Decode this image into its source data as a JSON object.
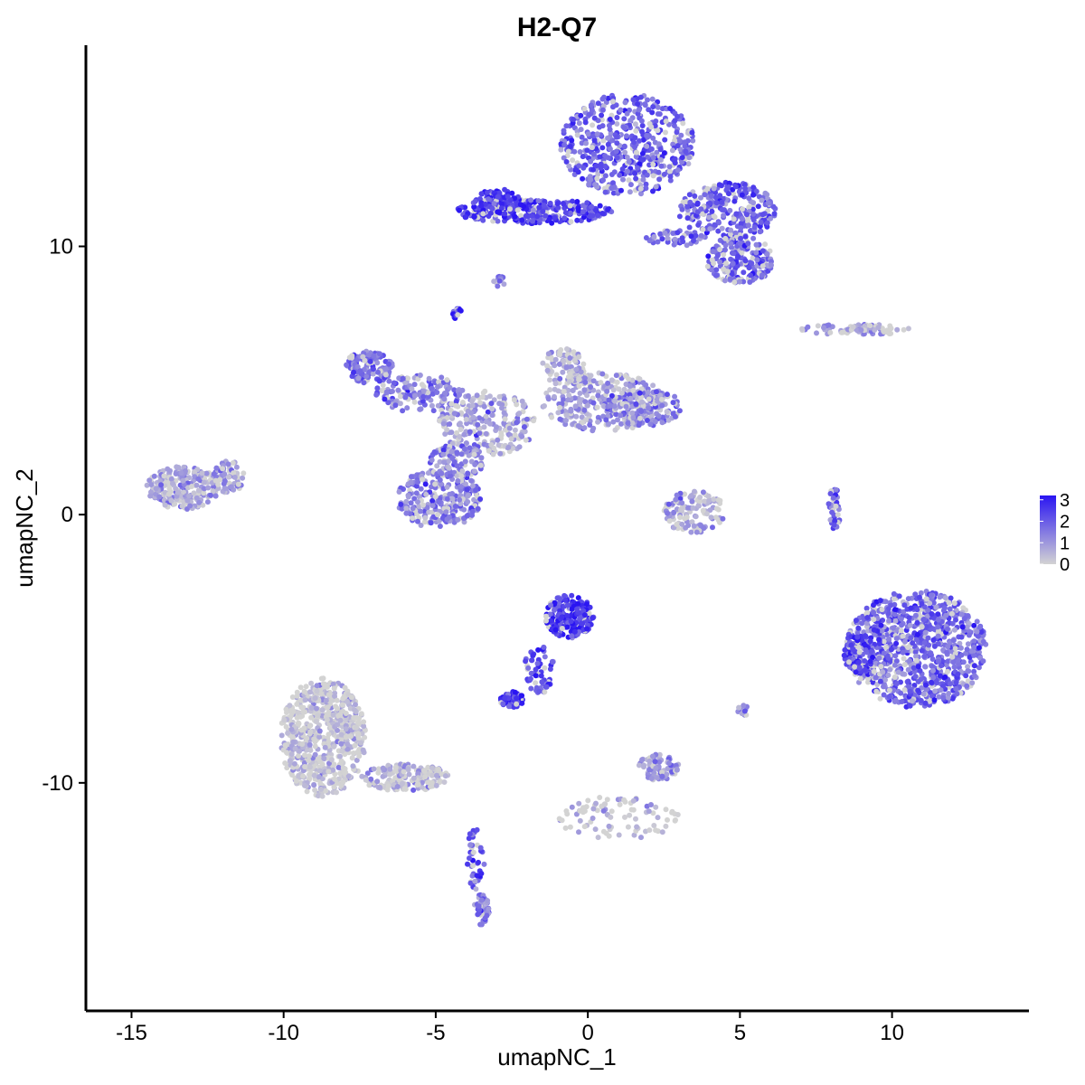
{
  "chart_data": {
    "type": "scatter",
    "title": "H2-Q7",
    "xlabel": "umapNC_1",
    "ylabel": "umapNC_2",
    "xlim": [
      -16.5,
      14.5
    ],
    "ylim": [
      -18.5,
      17.5
    ],
    "xticks": [
      -15,
      -10,
      -5,
      0,
      5,
      10
    ],
    "xtick_labels": [
      "-15",
      "-10",
      "-5",
      "0",
      "5",
      "10"
    ],
    "yticks": [
      -10,
      0,
      10
    ],
    "ytick_labels": [
      "-10",
      "0",
      "10"
    ],
    "grid": false,
    "legend": {
      "position": "right",
      "type": "colorbar",
      "labels": [
        "3",
        "2",
        "1",
        "0"
      ],
      "values": [
        3,
        2,
        1,
        0
      ]
    },
    "colors": {
      "low": "#d3d3d3",
      "high": "#2a15f2"
    },
    "color_scale": {
      "min": 0,
      "max": 3.2
    },
    "clusters": [
      {
        "name": "top-blob",
        "cx": 1.3,
        "cy": 13.8,
        "rx": 2.2,
        "ry": 1.9,
        "n": 520,
        "expr": 1.9
      },
      {
        "name": "top-right-arm",
        "cx": 4.6,
        "cy": 11.3,
        "rx": 1.6,
        "ry": 1.1,
        "n": 260,
        "expr": 2.0
      },
      {
        "name": "top-right-lobe",
        "cx": 5.0,
        "cy": 9.5,
        "rx": 1.1,
        "ry": 0.9,
        "n": 200,
        "expr": 1.8
      },
      {
        "name": "top-left-arm",
        "cx": -1.8,
        "cy": 11.3,
        "rx": 2.6,
        "ry": 0.45,
        "n": 280,
        "expr": 2.4
      },
      {
        "name": "top-left-tip",
        "cx": -3.0,
        "cy": 11.6,
        "rx": 0.8,
        "ry": 0.55,
        "n": 120,
        "expr": 2.6
      },
      {
        "name": "top-connector",
        "cx": 2.8,
        "cy": 10.3,
        "rx": 1.0,
        "ry": 0.3,
        "n": 50,
        "expr": 1.6
      },
      {
        "name": "small-top",
        "cx": -2.9,
        "cy": 8.7,
        "rx": 0.2,
        "ry": 0.2,
        "n": 15,
        "expr": 1.3
      },
      {
        "name": "mid-left-arm",
        "cx": -7.2,
        "cy": 5.5,
        "rx": 0.8,
        "ry": 0.6,
        "n": 120,
        "expr": 1.6
      },
      {
        "name": "mid-arm-band",
        "cx": -5.5,
        "cy": 4.5,
        "rx": 1.5,
        "ry": 0.7,
        "n": 150,
        "expr": 1.4
      },
      {
        "name": "mid-center",
        "cx": -3.3,
        "cy": 3.4,
        "rx": 1.6,
        "ry": 1.2,
        "n": 240,
        "expr": 0.7
      },
      {
        "name": "mid-right-arm",
        "cx": 0.5,
        "cy": 4.2,
        "rx": 2.0,
        "ry": 1.1,
        "n": 280,
        "expr": 0.9
      },
      {
        "name": "mid-right-tip",
        "cx": 1.8,
        "cy": 4.0,
        "rx": 1.3,
        "ry": 0.7,
        "n": 160,
        "expr": 1.3
      },
      {
        "name": "mid-top-peak",
        "cx": -0.8,
        "cy": 5.5,
        "rx": 0.7,
        "ry": 0.7,
        "n": 90,
        "expr": 0.5
      },
      {
        "name": "mid-bottom-blob",
        "cx": -4.9,
        "cy": 0.6,
        "rx": 1.4,
        "ry": 1.1,
        "n": 260,
        "expr": 1.4
      },
      {
        "name": "mid-bottom-stem",
        "cx": -4.3,
        "cy": 2.0,
        "rx": 0.9,
        "ry": 0.6,
        "n": 100,
        "expr": 1.2
      },
      {
        "name": "spike-up",
        "cx": -4.3,
        "cy": 7.5,
        "rx": 0.15,
        "ry": 0.2,
        "n": 20,
        "expr": 2.9
      },
      {
        "name": "left-blob",
        "cx": -13.3,
        "cy": 1.0,
        "rx": 1.2,
        "ry": 0.8,
        "n": 230,
        "expr": 0.8
      },
      {
        "name": "left-blob-ext",
        "cx": -11.8,
        "cy": 1.4,
        "rx": 0.5,
        "ry": 0.6,
        "n": 60,
        "expr": 1.0
      },
      {
        "name": "right-small",
        "cx": 3.5,
        "cy": 0.1,
        "rx": 1.0,
        "ry": 0.8,
        "n": 130,
        "expr": 0.6
      },
      {
        "name": "right-top-strip",
        "cx": 8.8,
        "cy": 6.9,
        "rx": 1.8,
        "ry": 0.2,
        "n": 80,
        "expr": 0.6
      },
      {
        "name": "right-slim",
        "cx": 8.1,
        "cy": 0.2,
        "rx": 0.2,
        "ry": 0.8,
        "n": 40,
        "expr": 2.1
      },
      {
        "name": "big-right-blob",
        "cx": 10.8,
        "cy": -5.0,
        "rx": 2.3,
        "ry": 2.2,
        "n": 900,
        "expr": 1.8
      },
      {
        "name": "big-right-left-edge",
        "cx": 8.9,
        "cy": -5.2,
        "rx": 0.5,
        "ry": 0.8,
        "n": 80,
        "expr": 2.4
      },
      {
        "name": "center-bottom-blob",
        "cx": -0.6,
        "cy": -3.8,
        "rx": 0.8,
        "ry": 0.8,
        "n": 220,
        "expr": 2.6
      },
      {
        "name": "center-bottom-arm",
        "cx": -1.6,
        "cy": -5.8,
        "rx": 0.5,
        "ry": 0.9,
        "n": 60,
        "expr": 2.2
      },
      {
        "name": "center-bottom-lobe",
        "cx": -2.5,
        "cy": -6.9,
        "rx": 0.4,
        "ry": 0.3,
        "n": 60,
        "expr": 2.4
      },
      {
        "name": "bottom-left-blob",
        "cx": -8.7,
        "cy": -8.3,
        "rx": 1.4,
        "ry": 2.2,
        "n": 650,
        "expr": 0.2
      },
      {
        "name": "bottom-left-tail",
        "cx": -6.0,
        "cy": -9.8,
        "rx": 1.5,
        "ry": 0.5,
        "n": 180,
        "expr": 0.4
      },
      {
        "name": "bottom-stem",
        "cx": -3.7,
        "cy": -12.8,
        "rx": 0.3,
        "ry": 1.2,
        "n": 40,
        "expr": 2.2
      },
      {
        "name": "bottom-tip",
        "cx": -3.5,
        "cy": -14.7,
        "rx": 0.25,
        "ry": 0.6,
        "n": 50,
        "expr": 1.6
      },
      {
        "name": "bottom-center-small",
        "cx": 2.3,
        "cy": -9.4,
        "rx": 0.7,
        "ry": 0.5,
        "n": 80,
        "expr": 1.1
      },
      {
        "name": "bottom-center-thread",
        "cx": 1.0,
        "cy": -11.3,
        "rx": 2.0,
        "ry": 0.8,
        "n": 90,
        "expr": 0.1
      },
      {
        "name": "small-right-bottom",
        "cx": 5.1,
        "cy": -7.3,
        "rx": 0.2,
        "ry": 0.2,
        "n": 15,
        "expr": 1.0
      }
    ]
  }
}
